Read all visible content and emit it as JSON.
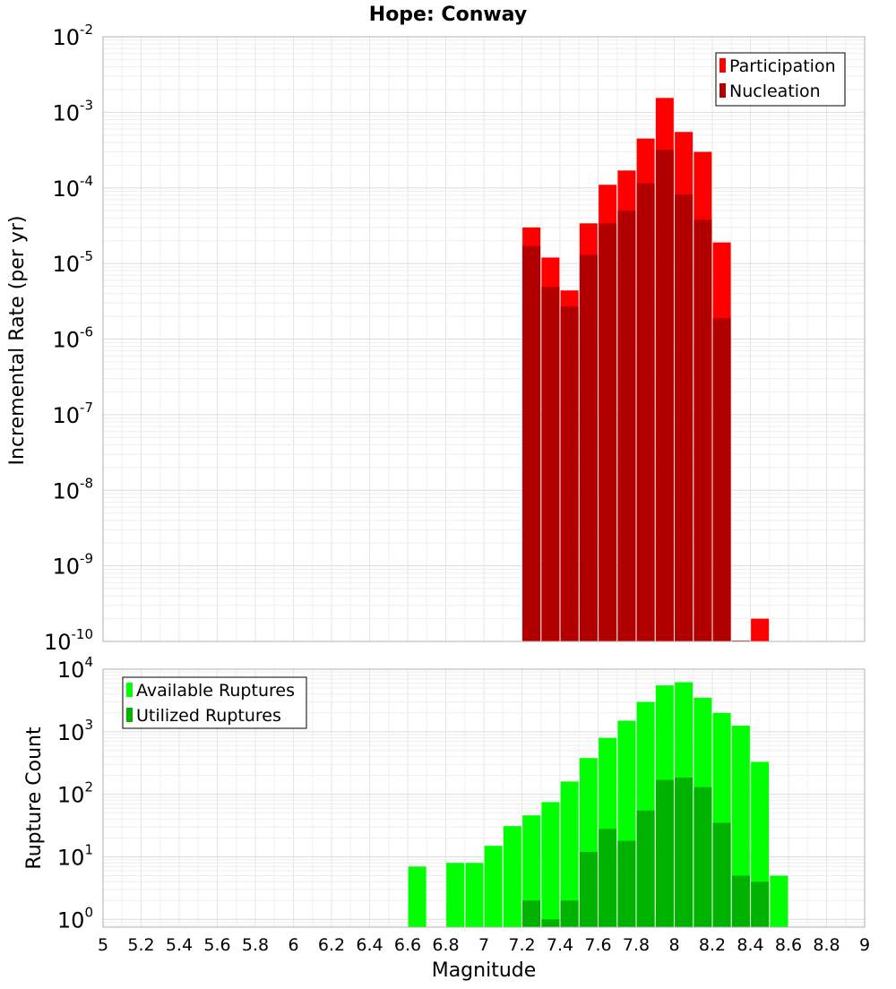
{
  "title": "Hope: Conway",
  "xlabel": "Magnitude",
  "x_ticks": [
    "5",
    "5.2",
    "5.4",
    "5.6",
    "5.8",
    "6",
    "6.2",
    "6.4",
    "6.6",
    "6.8",
    "7",
    "7.2",
    "7.4",
    "7.6",
    "7.8",
    "8",
    "8.2",
    "8.4",
    "8.6",
    "8.8",
    "9"
  ],
  "chart_data": [
    {
      "type": "bar",
      "ylabel": "Incremental Rate (per yr)",
      "yscale": "log",
      "ylim": [
        1e-10,
        0.01
      ],
      "xlim": [
        5,
        9
      ],
      "y_ticks": [
        {
          "base": "10",
          "exp": "-10"
        },
        {
          "base": "10",
          "exp": "-9"
        },
        {
          "base": "10",
          "exp": "-8"
        },
        {
          "base": "10",
          "exp": "-7"
        },
        {
          "base": "10",
          "exp": "-6"
        },
        {
          "base": "10",
          "exp": "-5"
        },
        {
          "base": "10",
          "exp": "-4"
        },
        {
          "base": "10",
          "exp": "-3"
        },
        {
          "base": "10",
          "exp": "-2"
        }
      ],
      "legend_position": "top-right",
      "grid": true,
      "series": [
        {
          "name": "Participation",
          "color": "#ff0000",
          "x": [
            7.25,
            7.35,
            7.45,
            7.55,
            7.65,
            7.75,
            7.85,
            7.95,
            8.05,
            8.15,
            8.25,
            8.35,
            8.45
          ],
          "values": [
            3e-05,
            1.2e-05,
            4.4e-06,
            3.4e-05,
            0.00011,
            0.00017,
            0.00045,
            0.00155,
            0.00055,
            0.0003,
            1.9e-05,
            1e-10,
            2e-10
          ]
        },
        {
          "name": "Nucleation",
          "color": "#b20000",
          "x": [
            7.25,
            7.35,
            7.45,
            7.55,
            7.65,
            7.75,
            7.85,
            7.95,
            8.05,
            8.15,
            8.25
          ],
          "values": [
            1.7e-05,
            4.9e-06,
            2.7e-06,
            1.3e-05,
            3.4e-05,
            5e-05,
            0.000115,
            0.00032,
            8.2e-05,
            3.8e-05,
            1.9e-06
          ]
        }
      ]
    },
    {
      "type": "bar",
      "ylabel": "Rupture Count",
      "yscale": "log",
      "ylim": [
        0.75,
        10000
      ],
      "xlim": [
        5,
        9
      ],
      "y_ticks": [
        {
          "base": "10",
          "exp": "0"
        },
        {
          "base": "10",
          "exp": "1"
        },
        {
          "base": "10",
          "exp": "2"
        },
        {
          "base": "10",
          "exp": "3"
        },
        {
          "base": "10",
          "exp": "4"
        }
      ],
      "legend_position": "top-left",
      "grid": true,
      "series": [
        {
          "name": "Available Ruptures",
          "color": "#00ff00",
          "x": [
            6.65,
            6.85,
            6.95,
            7.05,
            7.15,
            7.25,
            7.35,
            7.45,
            7.55,
            7.65,
            7.75,
            7.85,
            7.95,
            8.05,
            8.15,
            8.25,
            8.35,
            8.45,
            8.55
          ],
          "values": [
            7,
            8,
            8,
            15,
            31,
            46,
            75,
            160,
            380,
            800,
            1500,
            3000,
            5500,
            6200,
            3500,
            2000,
            1250,
            330,
            5
          ]
        },
        {
          "name": "Utilized Ruptures",
          "color": "#00b200",
          "x": [
            7.25,
            7.35,
            7.45,
            7.55,
            7.65,
            7.75,
            7.85,
            7.95,
            8.05,
            8.15,
            8.25,
            8.35,
            8.45
          ],
          "values": [
            2,
            1,
            2,
            12,
            28,
            18,
            55,
            170,
            185,
            130,
            35,
            5,
            4
          ]
        }
      ]
    }
  ]
}
